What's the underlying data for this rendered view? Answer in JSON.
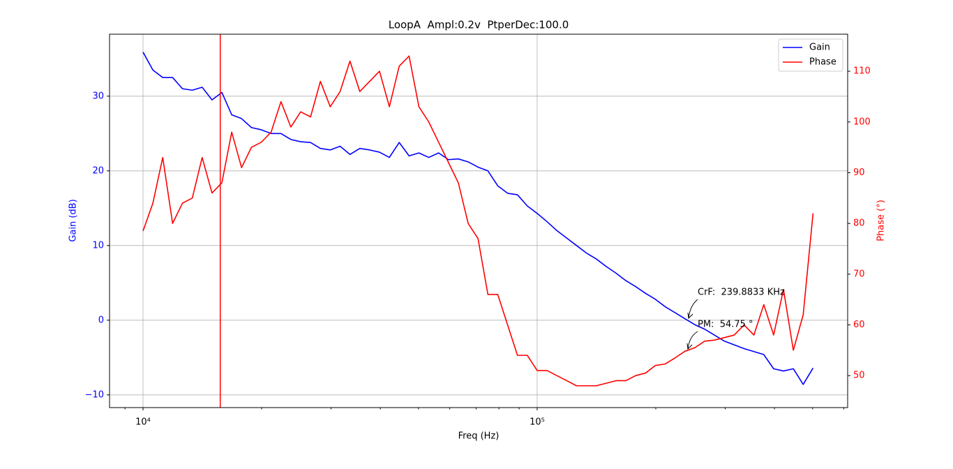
{
  "chart_data": {
    "type": "line",
    "title": "LoopA  Ampl:0.2v  PtperDec:100.0",
    "x_label": "Freq (Hz)",
    "y_label": "Gain (dB)",
    "y2_label": "Phase (°)",
    "log_x": true,
    "grid": true,
    "legend": "upper right",
    "xlim": [
      8222,
      613500
    ],
    "xticks": [
      {
        "value": 10000,
        "label": "10⁴"
      },
      {
        "value": 100000,
        "label": "10⁵"
      }
    ],
    "xminorticks": [
      9000,
      20000,
      30000,
      40000,
      50000,
      60000,
      70000,
      80000,
      90000,
      200000,
      300000,
      400000,
      500000,
      600000
    ],
    "ylim": [
      -11.7,
      38.3
    ],
    "yticks": [
      {
        "value": -10,
        "label": "−10"
      },
      0,
      10,
      20,
      30
    ],
    "y2lim": [
      43.7,
      117.3
    ],
    "y2ticks": [
      50,
      60,
      70,
      80,
      90,
      100,
      110
    ],
    "vline": {
      "x": 15700,
      "color": "#ff0000"
    },
    "annotations": [
      "CrF:  239.8833 KHz",
      "PM:  54.75 °"
    ],
    "x": [
      10000,
      10593,
      11220,
      11885,
      12589,
      13335,
      14125,
      14962,
      15849,
      16788,
      17783,
      18836,
      19953,
      21135,
      22387,
      23714,
      25119,
      26607,
      28184,
      29854,
      31623,
      33497,
      35481,
      37584,
      39811,
      42170,
      44668,
      47315,
      50119,
      53088,
      56234,
      59566,
      63096,
      66834,
      70795,
      74989,
      79433,
      84140,
      89125,
      94406,
      100000,
      105925,
      112202,
      118850,
      125893,
      133352,
      141254,
      149624,
      158489,
      167880,
      177828,
      188365,
      199526,
      211349,
      223872,
      237137,
      251189,
      266073,
      281838,
      298538,
      316228,
      334965,
      354813,
      375837,
      398107,
      421697,
      446684,
      473151,
      501187
    ],
    "series": [
      {
        "name": "Gain",
        "color": "#0000ff",
        "axis": "y",
        "values": [
          35.9,
          33.5,
          32.5,
          32.5,
          31.0,
          30.8,
          31.2,
          29.5,
          30.5,
          27.5,
          27.0,
          25.8,
          25.5,
          25.0,
          25.0,
          24.2,
          23.9,
          23.8,
          23.0,
          22.8,
          23.3,
          22.2,
          23.0,
          22.8,
          22.5,
          21.8,
          23.8,
          22.0,
          22.4,
          21.8,
          22.4,
          21.5,
          21.6,
          21.2,
          20.5,
          20.0,
          18.0,
          17.0,
          16.8,
          15.3,
          14.3,
          13.2,
          12.0,
          11.0,
          10.0,
          9.0,
          8.2,
          7.2,
          6.3,
          5.3,
          4.5,
          3.6,
          2.8,
          1.8,
          1.0,
          0.2,
          -0.6,
          -1.2,
          -2.0,
          -2.8,
          -3.3,
          -3.8,
          -4.2,
          -4.6,
          -6.5,
          -6.8,
          -6.5,
          -8.6,
          -6.4
        ]
      },
      {
        "name": "Phase",
        "color": "#ff0000",
        "axis": "y2",
        "values": [
          78.5,
          84,
          93,
          80,
          84,
          85,
          93,
          86,
          88,
          98,
          91,
          95,
          96,
          98,
          104,
          99,
          102,
          101,
          108,
          103,
          106,
          112,
          106,
          108,
          110,
          103,
          111,
          113,
          103,
          100,
          96,
          92,
          88,
          80,
          77,
          66,
          66,
          60,
          54,
          54,
          51,
          51,
          50,
          49,
          48,
          48,
          48,
          48.5,
          49,
          49,
          50,
          50.5,
          52,
          52.3,
          53.5,
          54.8,
          55.5,
          56.8,
          57,
          57.5,
          58,
          60,
          58,
          64,
          58,
          67,
          55,
          62,
          82
        ]
      }
    ]
  }
}
